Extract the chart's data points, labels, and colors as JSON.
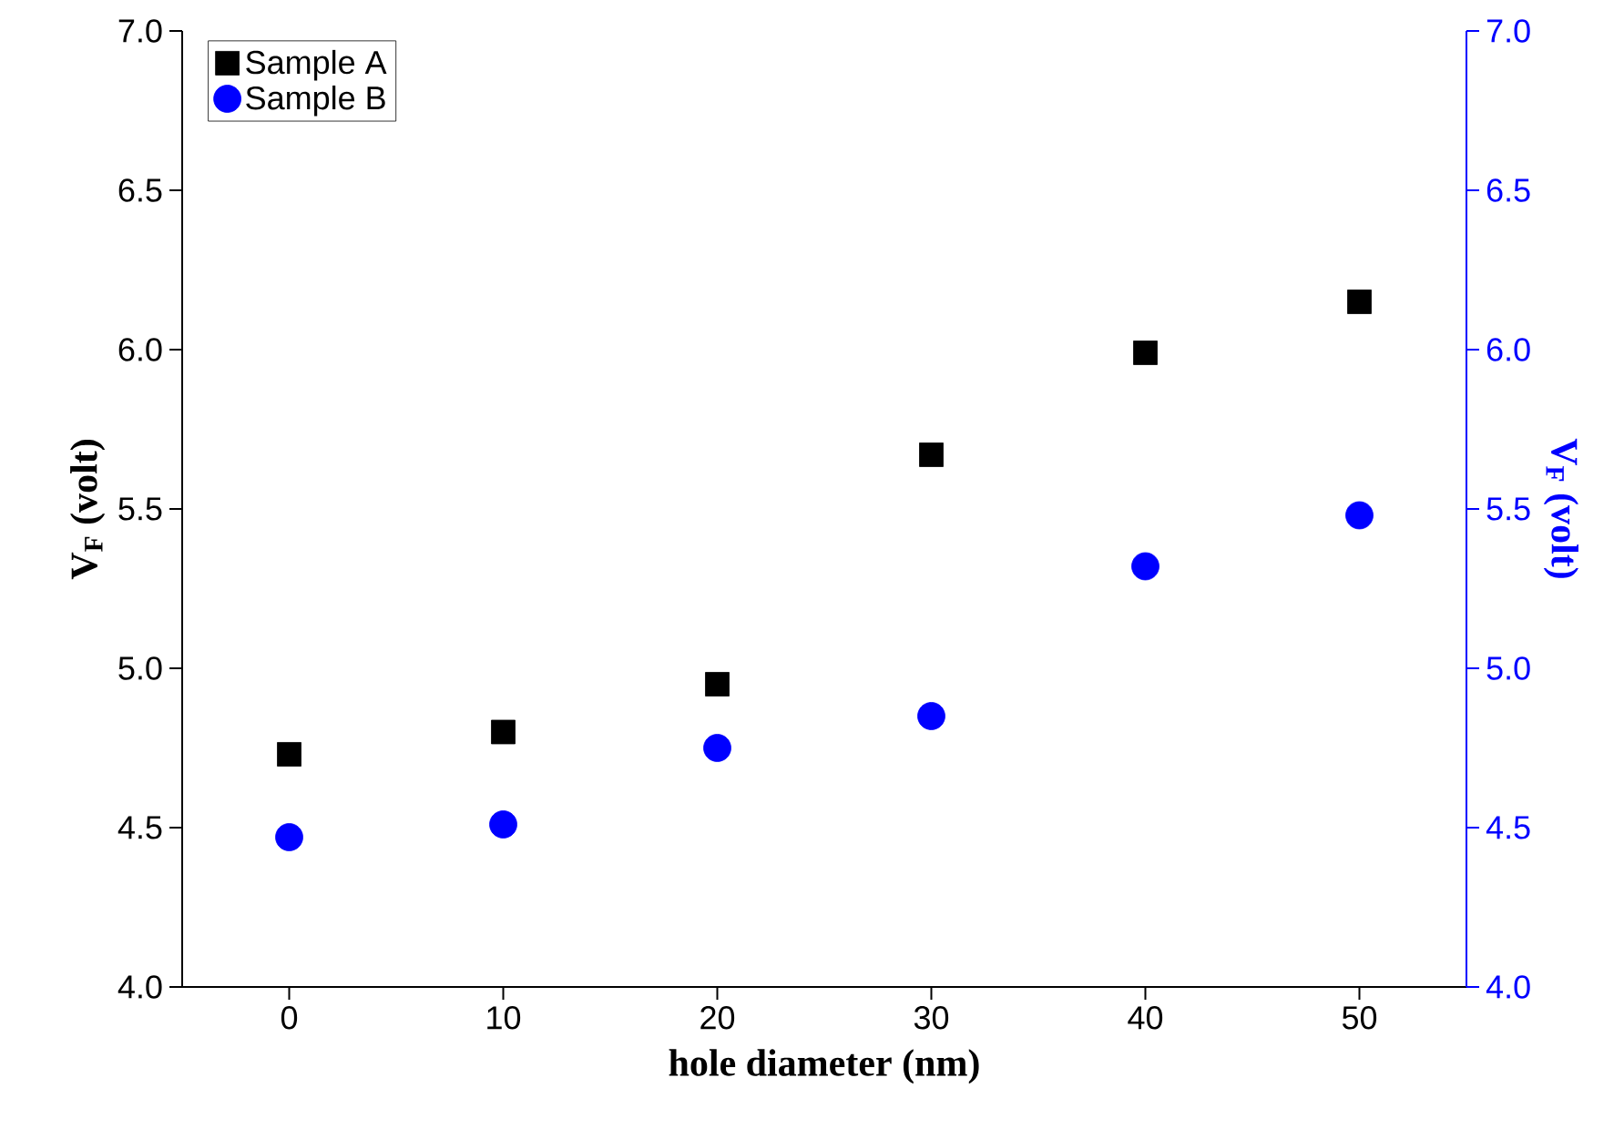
{
  "chart_data": {
    "type": "scatter",
    "xlabel": "hole diameter (nm)",
    "ylabel": "V$_{F}$ (volt)",
    "y2label": "V$_{F}$ (volt)",
    "x": [
      0,
      10,
      20,
      30,
      40,
      50
    ],
    "series": [
      {
        "name": "Sample A",
        "color": "#000000",
        "marker": "square",
        "values": [
          4.73,
          4.8,
          4.95,
          5.67,
          5.99,
          6.15
        ]
      },
      {
        "name": "Sample B",
        "color": "#0000ff",
        "marker": "circle",
        "axis": "y2",
        "values": [
          4.47,
          4.51,
          4.75,
          4.85,
          5.32,
          5.48
        ]
      }
    ],
    "xlim": [
      -5,
      55
    ],
    "xticks": [
      0,
      10,
      20,
      30,
      40,
      50
    ],
    "ylim": [
      4.0,
      7.0
    ],
    "yticks": [
      {
        "value": 4.0,
        "label": "4.0"
      },
      {
        "value": 4.5,
        "label": "4.5"
      },
      {
        "value": 5.0,
        "label": "5.0"
      },
      {
        "value": 5.5,
        "label": "5.5"
      },
      {
        "value": 6.0,
        "label": "6.0"
      },
      {
        "value": 6.5,
        "label": "6.5"
      },
      {
        "value": 7.0,
        "label": "7.0"
      }
    ],
    "y2lim": [
      4.0,
      7.0
    ],
    "y2ticks": [
      {
        "value": 4.0,
        "label": "4.0"
      },
      {
        "value": 4.5,
        "label": "4.5"
      },
      {
        "value": 5.0,
        "label": "5.0"
      },
      {
        "value": 5.5,
        "label": "5.5"
      },
      {
        "value": 6.0,
        "label": "6.0"
      },
      {
        "value": 6.5,
        "label": "6.5"
      },
      {
        "value": 7.0,
        "label": "7.0"
      }
    ],
    "legend": "top left",
    "grid": false
  }
}
